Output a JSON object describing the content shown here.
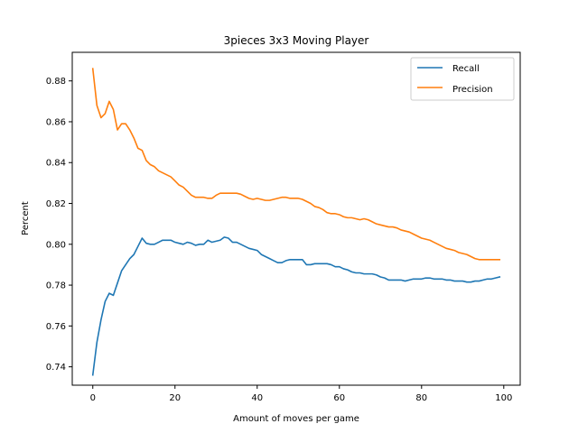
{
  "chart_data": {
    "type": "line",
    "title": "3pieces 3x3 Moving Player",
    "xlabel": "Amount of moves per game",
    "ylabel": "Percent",
    "xlim": [
      -5,
      104
    ],
    "ylim": [
      0.731,
      0.894
    ],
    "xticks": [
      0,
      20,
      40,
      60,
      80,
      100
    ],
    "yticks": [
      0.74,
      0.76,
      0.78,
      0.8,
      0.82,
      0.84,
      0.86,
      0.88
    ],
    "ytick_format": 2,
    "grid": false,
    "legend_position": "top-right",
    "series": [
      {
        "name": "Recall",
        "color": "#1f77b4",
        "x": [
          0,
          1,
          2,
          3,
          4,
          5,
          6,
          7,
          8,
          9,
          10,
          11,
          12,
          13,
          14,
          15,
          16,
          17,
          18,
          19,
          20,
          21,
          22,
          23,
          24,
          25,
          26,
          27,
          28,
          29,
          30,
          31,
          32,
          33,
          34,
          35,
          36,
          37,
          38,
          39,
          40,
          41,
          42,
          43,
          44,
          45,
          46,
          47,
          48,
          49,
          50,
          51,
          52,
          53,
          54,
          55,
          56,
          57,
          58,
          59,
          60,
          61,
          62,
          63,
          64,
          65,
          66,
          67,
          68,
          69,
          70,
          71,
          72,
          73,
          74,
          75,
          76,
          77,
          78,
          79,
          80,
          81,
          82,
          83,
          84,
          85,
          86,
          87,
          88,
          89,
          90,
          91,
          92,
          93,
          94,
          95,
          96,
          97,
          98,
          99
        ],
        "values": [
          0.736,
          0.752,
          0.763,
          0.772,
          0.776,
          0.775,
          0.781,
          0.787,
          0.79,
          0.793,
          0.795,
          0.799,
          0.803,
          0.8005,
          0.8,
          0.8,
          0.801,
          0.802,
          0.802,
          0.802,
          0.801,
          0.8005,
          0.8,
          0.801,
          0.8005,
          0.7995,
          0.8,
          0.8,
          0.802,
          0.801,
          0.8015,
          0.802,
          0.8035,
          0.803,
          0.801,
          0.801,
          0.8,
          0.799,
          0.798,
          0.7975,
          0.797,
          0.795,
          0.794,
          0.793,
          0.792,
          0.791,
          0.791,
          0.792,
          0.7925,
          0.7925,
          0.7925,
          0.7925,
          0.79,
          0.79,
          0.7905,
          0.7905,
          0.7905,
          0.7905,
          0.79,
          0.789,
          0.789,
          0.788,
          0.7875,
          0.7865,
          0.786,
          0.786,
          0.7855,
          0.7855,
          0.7855,
          0.785,
          0.784,
          0.7835,
          0.7825,
          0.7825,
          0.7825,
          0.7825,
          0.782,
          0.7825,
          0.783,
          0.783,
          0.783,
          0.7835,
          0.7835,
          0.783,
          0.783,
          0.783,
          0.7825,
          0.7825,
          0.782,
          0.782,
          0.782,
          0.7815,
          0.7815,
          0.782,
          0.782,
          0.7825,
          0.783,
          0.783,
          0.7835,
          0.784
        ]
      },
      {
        "name": "Precision",
        "color": "#ff7f0e",
        "x": [
          0,
          1,
          2,
          3,
          4,
          5,
          6,
          7,
          8,
          9,
          10,
          11,
          12,
          13,
          14,
          15,
          16,
          17,
          18,
          19,
          20,
          21,
          22,
          23,
          24,
          25,
          26,
          27,
          28,
          29,
          30,
          31,
          32,
          33,
          34,
          35,
          36,
          37,
          38,
          39,
          40,
          41,
          42,
          43,
          44,
          45,
          46,
          47,
          48,
          49,
          50,
          51,
          52,
          53,
          54,
          55,
          56,
          57,
          58,
          59,
          60,
          61,
          62,
          63,
          64,
          65,
          66,
          67,
          68,
          69,
          70,
          71,
          72,
          73,
          74,
          75,
          76,
          77,
          78,
          79,
          80,
          81,
          82,
          83,
          84,
          85,
          86,
          87,
          88,
          89,
          90,
          91,
          92,
          93,
          94,
          95,
          96,
          97,
          98,
          99
        ],
        "values": [
          0.886,
          0.868,
          0.862,
          0.864,
          0.87,
          0.866,
          0.856,
          0.859,
          0.859,
          0.856,
          0.852,
          0.847,
          0.846,
          0.841,
          0.839,
          0.838,
          0.836,
          0.835,
          0.834,
          0.833,
          0.831,
          0.829,
          0.828,
          0.826,
          0.824,
          0.823,
          0.823,
          0.823,
          0.8225,
          0.8225,
          0.824,
          0.825,
          0.825,
          0.825,
          0.825,
          0.825,
          0.8245,
          0.8235,
          0.8225,
          0.822,
          0.8225,
          0.822,
          0.8215,
          0.8215,
          0.822,
          0.8225,
          0.823,
          0.823,
          0.8225,
          0.8225,
          0.8225,
          0.822,
          0.821,
          0.82,
          0.8185,
          0.818,
          0.817,
          0.8155,
          0.815,
          0.815,
          0.8145,
          0.8135,
          0.813,
          0.813,
          0.8125,
          0.812,
          0.8125,
          0.812,
          0.811,
          0.81,
          0.8095,
          0.809,
          0.8085,
          0.8085,
          0.808,
          0.807,
          0.8065,
          0.806,
          0.805,
          0.804,
          0.803,
          0.8025,
          0.802,
          0.801,
          0.8,
          0.799,
          0.798,
          0.7975,
          0.797,
          0.796,
          0.7955,
          0.795,
          0.794,
          0.793,
          0.7925,
          0.7925,
          0.7925,
          0.7925,
          0.7925,
          0.7925
        ]
      }
    ]
  }
}
